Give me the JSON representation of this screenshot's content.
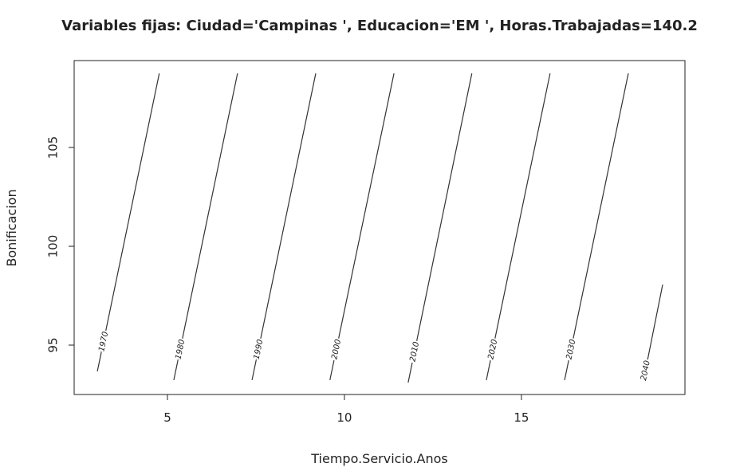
{
  "chart_data": {
    "type": "contour",
    "title": "Variables fijas: Ciudad='Campinas ', Educacion='EM ', Horas.Trabajadas=140.2",
    "xlabel": "Tiempo.Servicio.Anos",
    "ylabel": "Bonificacion",
    "xlim": [
      2.365,
      19.62
    ],
    "ylim": [
      92.5,
      109.4
    ],
    "xticks": [
      5,
      10,
      15
    ],
    "yticks": [
      95,
      100,
      105
    ],
    "color": "#333333",
    "contours": [
      {
        "level": 1970,
        "x": [
          3.02,
          4.77
        ],
        "y": [
          93.67,
          108.75
        ]
      },
      {
        "level": 1980,
        "x": [
          5.18,
          6.98
        ],
        "y": [
          93.23,
          108.75
        ]
      },
      {
        "level": 1990,
        "x": [
          7.39,
          9.19
        ],
        "y": [
          93.23,
          108.75
        ]
      },
      {
        "level": 2000,
        "x": [
          9.59,
          11.4
        ],
        "y": [
          93.23,
          108.75
        ]
      },
      {
        "level": 2010,
        "x": [
          11.8,
          13.6
        ],
        "y": [
          93.1,
          108.75
        ]
      },
      {
        "level": 2020,
        "x": [
          14.01,
          15.81
        ],
        "y": [
          93.23,
          108.75
        ]
      },
      {
        "level": 2030,
        "x": [
          16.22,
          18.02
        ],
        "y": [
          93.23,
          108.75
        ]
      },
      {
        "level": 2040,
        "x": [
          18.45,
          18.99
        ],
        "y": [
          93.23,
          98.06
        ]
      }
    ]
  }
}
